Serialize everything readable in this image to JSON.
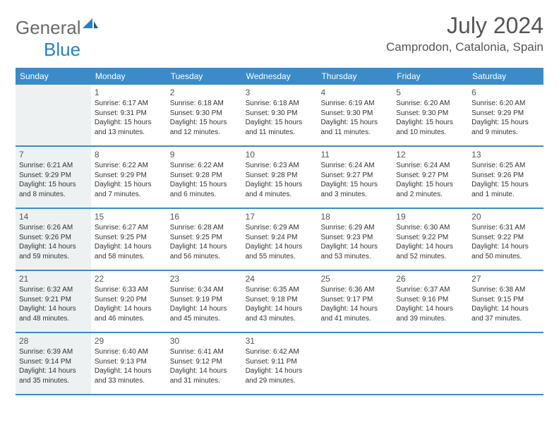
{
  "brand": {
    "part1": "General",
    "part2": "Blue"
  },
  "title": "July 2024",
  "location": "Camprodon, Catalonia, Spain",
  "colors": {
    "header_bg": "#3b8bc9",
    "shade": "#eef1f2",
    "rule": "#3b8bc9",
    "brand_gray": "#6a6a6a",
    "brand_blue": "#2a7fc4"
  },
  "day_names": [
    "Sunday",
    "Monday",
    "Tuesday",
    "Wednesday",
    "Thursday",
    "Friday",
    "Saturday"
  ],
  "weeks": [
    [
      {
        "num": "",
        "shaded": true,
        "sr": "",
        "ss": "",
        "dl": ""
      },
      {
        "num": "1",
        "shaded": false,
        "sr": "Sunrise: 6:17 AM",
        "ss": "Sunset: 9:31 PM",
        "dl": "Daylight: 15 hours and 13 minutes."
      },
      {
        "num": "2",
        "shaded": false,
        "sr": "Sunrise: 6:18 AM",
        "ss": "Sunset: 9:30 PM",
        "dl": "Daylight: 15 hours and 12 minutes."
      },
      {
        "num": "3",
        "shaded": false,
        "sr": "Sunrise: 6:18 AM",
        "ss": "Sunset: 9:30 PM",
        "dl": "Daylight: 15 hours and 11 minutes."
      },
      {
        "num": "4",
        "shaded": false,
        "sr": "Sunrise: 6:19 AM",
        "ss": "Sunset: 9:30 PM",
        "dl": "Daylight: 15 hours and 11 minutes."
      },
      {
        "num": "5",
        "shaded": false,
        "sr": "Sunrise: 6:20 AM",
        "ss": "Sunset: 9:30 PM",
        "dl": "Daylight: 15 hours and 10 minutes."
      },
      {
        "num": "6",
        "shaded": false,
        "sr": "Sunrise: 6:20 AM",
        "ss": "Sunset: 9:29 PM",
        "dl": "Daylight: 15 hours and 9 minutes."
      }
    ],
    [
      {
        "num": "7",
        "shaded": true,
        "sr": "Sunrise: 6:21 AM",
        "ss": "Sunset: 9:29 PM",
        "dl": "Daylight: 15 hours and 8 minutes."
      },
      {
        "num": "8",
        "shaded": false,
        "sr": "Sunrise: 6:22 AM",
        "ss": "Sunset: 9:29 PM",
        "dl": "Daylight: 15 hours and 7 minutes."
      },
      {
        "num": "9",
        "shaded": false,
        "sr": "Sunrise: 6:22 AM",
        "ss": "Sunset: 9:28 PM",
        "dl": "Daylight: 15 hours and 6 minutes."
      },
      {
        "num": "10",
        "shaded": false,
        "sr": "Sunrise: 6:23 AM",
        "ss": "Sunset: 9:28 PM",
        "dl": "Daylight: 15 hours and 4 minutes."
      },
      {
        "num": "11",
        "shaded": false,
        "sr": "Sunrise: 6:24 AM",
        "ss": "Sunset: 9:27 PM",
        "dl": "Daylight: 15 hours and 3 minutes."
      },
      {
        "num": "12",
        "shaded": false,
        "sr": "Sunrise: 6:24 AM",
        "ss": "Sunset: 9:27 PM",
        "dl": "Daylight: 15 hours and 2 minutes."
      },
      {
        "num": "13",
        "shaded": false,
        "sr": "Sunrise: 6:25 AM",
        "ss": "Sunset: 9:26 PM",
        "dl": "Daylight: 15 hours and 1 minute."
      }
    ],
    [
      {
        "num": "14",
        "shaded": true,
        "sr": "Sunrise: 6:26 AM",
        "ss": "Sunset: 9:26 PM",
        "dl": "Daylight: 14 hours and 59 minutes."
      },
      {
        "num": "15",
        "shaded": false,
        "sr": "Sunrise: 6:27 AM",
        "ss": "Sunset: 9:25 PM",
        "dl": "Daylight: 14 hours and 58 minutes."
      },
      {
        "num": "16",
        "shaded": false,
        "sr": "Sunrise: 6:28 AM",
        "ss": "Sunset: 9:25 PM",
        "dl": "Daylight: 14 hours and 56 minutes."
      },
      {
        "num": "17",
        "shaded": false,
        "sr": "Sunrise: 6:29 AM",
        "ss": "Sunset: 9:24 PM",
        "dl": "Daylight: 14 hours and 55 minutes."
      },
      {
        "num": "18",
        "shaded": false,
        "sr": "Sunrise: 6:29 AM",
        "ss": "Sunset: 9:23 PM",
        "dl": "Daylight: 14 hours and 53 minutes."
      },
      {
        "num": "19",
        "shaded": false,
        "sr": "Sunrise: 6:30 AM",
        "ss": "Sunset: 9:22 PM",
        "dl": "Daylight: 14 hours and 52 minutes."
      },
      {
        "num": "20",
        "shaded": false,
        "sr": "Sunrise: 6:31 AM",
        "ss": "Sunset: 9:22 PM",
        "dl": "Daylight: 14 hours and 50 minutes."
      }
    ],
    [
      {
        "num": "21",
        "shaded": true,
        "sr": "Sunrise: 6:32 AM",
        "ss": "Sunset: 9:21 PM",
        "dl": "Daylight: 14 hours and 48 minutes."
      },
      {
        "num": "22",
        "shaded": false,
        "sr": "Sunrise: 6:33 AM",
        "ss": "Sunset: 9:20 PM",
        "dl": "Daylight: 14 hours and 46 minutes."
      },
      {
        "num": "23",
        "shaded": false,
        "sr": "Sunrise: 6:34 AM",
        "ss": "Sunset: 9:19 PM",
        "dl": "Daylight: 14 hours and 45 minutes."
      },
      {
        "num": "24",
        "shaded": false,
        "sr": "Sunrise: 6:35 AM",
        "ss": "Sunset: 9:18 PM",
        "dl": "Daylight: 14 hours and 43 minutes."
      },
      {
        "num": "25",
        "shaded": false,
        "sr": "Sunrise: 6:36 AM",
        "ss": "Sunset: 9:17 PM",
        "dl": "Daylight: 14 hours and 41 minutes."
      },
      {
        "num": "26",
        "shaded": false,
        "sr": "Sunrise: 6:37 AM",
        "ss": "Sunset: 9:16 PM",
        "dl": "Daylight: 14 hours and 39 minutes."
      },
      {
        "num": "27",
        "shaded": false,
        "sr": "Sunrise: 6:38 AM",
        "ss": "Sunset: 9:15 PM",
        "dl": "Daylight: 14 hours and 37 minutes."
      }
    ],
    [
      {
        "num": "28",
        "shaded": true,
        "sr": "Sunrise: 6:39 AM",
        "ss": "Sunset: 9:14 PM",
        "dl": "Daylight: 14 hours and 35 minutes."
      },
      {
        "num": "29",
        "shaded": false,
        "sr": "Sunrise: 6:40 AM",
        "ss": "Sunset: 9:13 PM",
        "dl": "Daylight: 14 hours and 33 minutes."
      },
      {
        "num": "30",
        "shaded": false,
        "sr": "Sunrise: 6:41 AM",
        "ss": "Sunset: 9:12 PM",
        "dl": "Daylight: 14 hours and 31 minutes."
      },
      {
        "num": "31",
        "shaded": false,
        "sr": "Sunrise: 6:42 AM",
        "ss": "Sunset: 9:11 PM",
        "dl": "Daylight: 14 hours and 29 minutes."
      },
      {
        "num": "",
        "shaded": false,
        "sr": "",
        "ss": "",
        "dl": ""
      },
      {
        "num": "",
        "shaded": false,
        "sr": "",
        "ss": "",
        "dl": ""
      },
      {
        "num": "",
        "shaded": false,
        "sr": "",
        "ss": "",
        "dl": ""
      }
    ]
  ]
}
